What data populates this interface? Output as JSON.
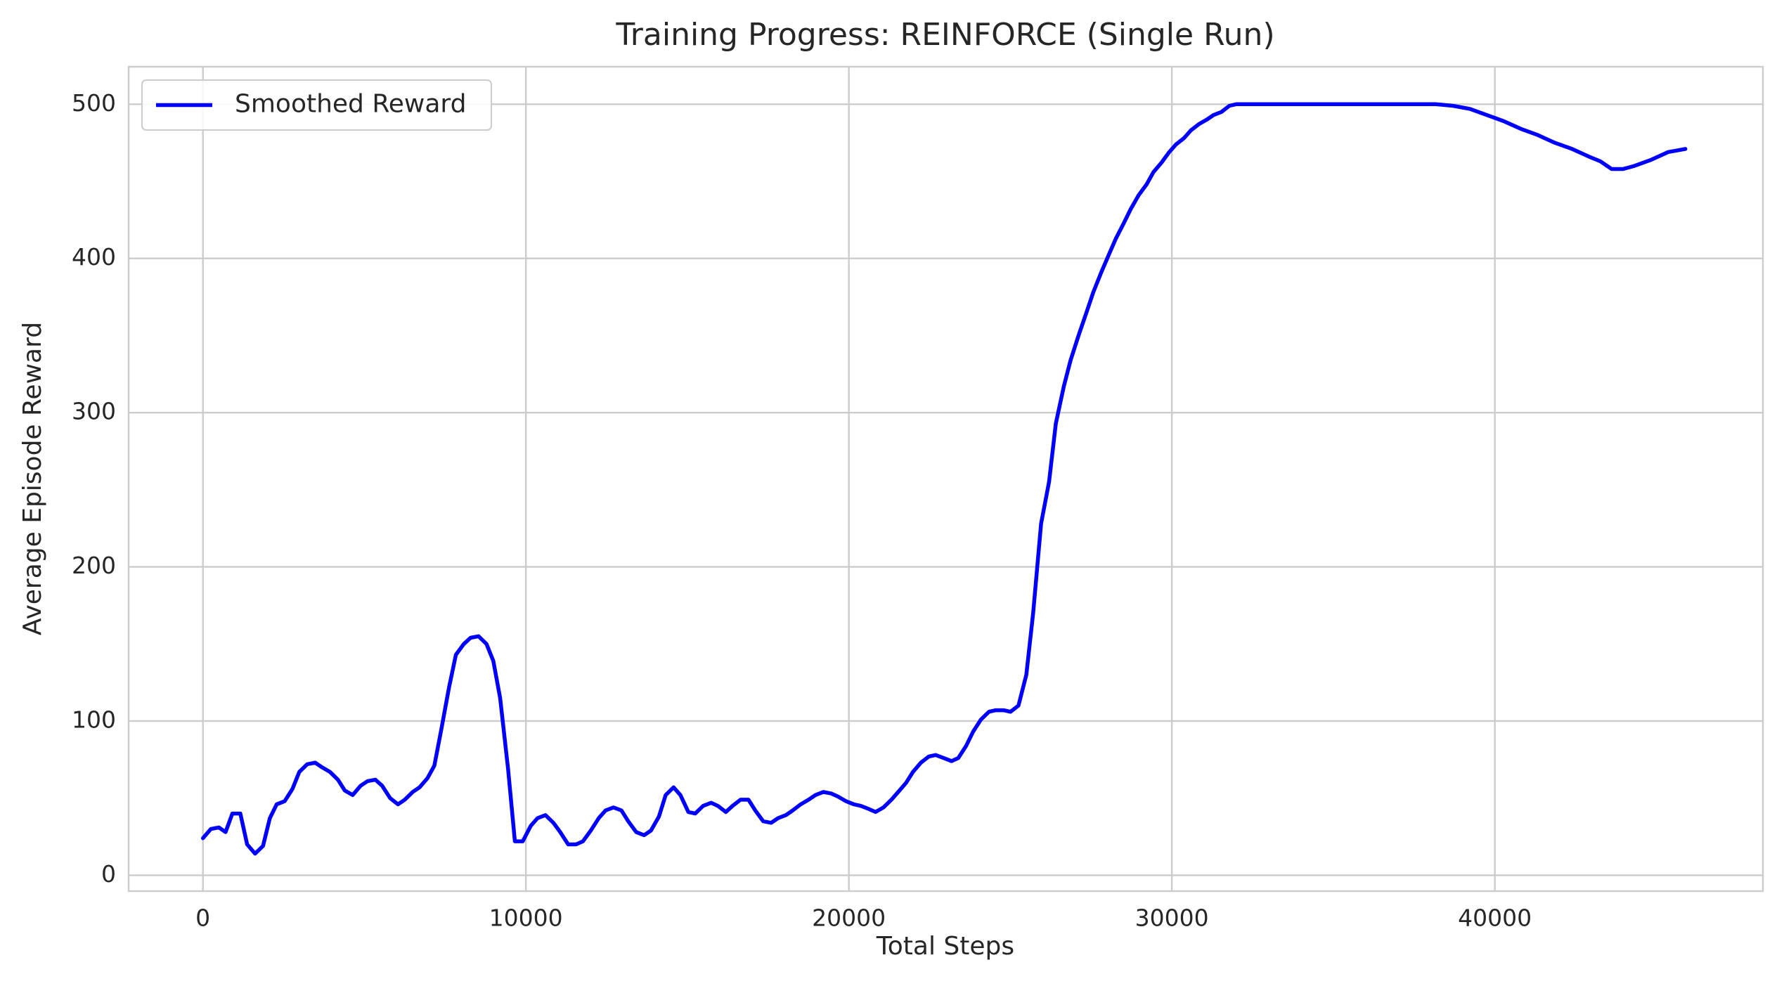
{
  "chart_data": {
    "type": "line",
    "title": "Training Progress: REINFORCE (Single Run)",
    "x_label": "Total Steps",
    "y_label": "Average Episode Reward",
    "xlim": [
      -2300,
      48300
    ],
    "ylim": [
      -10.3,
      524.3
    ],
    "xticks": [
      0,
      10000,
      20000,
      30000,
      40000
    ],
    "yticks": [
      0,
      100,
      200,
      300,
      400,
      500
    ],
    "grid": true,
    "legend_position": "upper left",
    "series": [
      {
        "name": "Smoothed Reward",
        "color": "#0000ff",
        "x": [
          0,
          246,
          492,
          702,
          913,
          1159,
          1370,
          1615,
          1861,
          2072,
          2283,
          2529,
          2774,
          2985,
          3231,
          3477,
          3687,
          3933,
          4179,
          4389,
          4635,
          4881,
          5092,
          5338,
          5549,
          5795,
          6040,
          6251,
          6497,
          6708,
          6953,
          7164,
          7375,
          7621,
          7832,
          8078,
          8288,
          8534,
          8780,
          8991,
          9201,
          9447,
          9658,
          9903,
          10149,
          10360,
          10606,
          10852,
          11062,
          11308,
          11554,
          11765,
          12010,
          12256,
          12467,
          12713,
          12959,
          13169,
          13415,
          13661,
          13872,
          14118,
          14328,
          14574,
          14785,
          15031,
          15241,
          15487,
          15733,
          15944,
          16190,
          16400,
          16646,
          16892,
          17103,
          17348,
          17594,
          17805,
          18051,
          18261,
          18507,
          18753,
          18964,
          19209,
          19455,
          19666,
          19912,
          20158,
          20368,
          20614,
          20825,
          21071,
          21317,
          21527,
          21773,
          21984,
          22230,
          22475,
          22686,
          22932,
          23178,
          23388,
          23634,
          23845,
          24091,
          24336,
          24547,
          24793,
          25004,
          25250,
          25495,
          25706,
          25952,
          26197,
          26408,
          26654,
          26865,
          27111,
          27356,
          27567,
          27813,
          28059,
          28269,
          28515,
          28726,
          28972,
          29217,
          29428,
          29674,
          29920,
          30130,
          30376,
          30587,
          30833,
          31078,
          31289,
          31535,
          31781,
          31992,
          34000,
          36000,
          38174,
          38700,
          39227,
          39754,
          40281,
          40808,
          41334,
          41861,
          42388,
          42915,
          43266,
          43617,
          43968,
          44319,
          44846,
          45373,
          45900
        ],
        "values": [
          24,
          30,
          31,
          28,
          40,
          40,
          20,
          14,
          19,
          37,
          46,
          48,
          56,
          67,
          72,
          73,
          70,
          67,
          62,
          55,
          52,
          58,
          61,
          62,
          58,
          50,
          46,
          49,
          54,
          57,
          63,
          71,
          94,
          122,
          143,
          150,
          154,
          155,
          150,
          139,
          115,
          69,
          22,
          22,
          32,
          37,
          39,
          34,
          28,
          20,
          20,
          22,
          29,
          37,
          42,
          44,
          42,
          35,
          28,
          26,
          29,
          38,
          52,
          57,
          52,
          41,
          40,
          45,
          47,
          45,
          41,
          45,
          49,
          49,
          42,
          35,
          34,
          37,
          39,
          42,
          46,
          49,
          52,
          54,
          53,
          51,
          48,
          46,
          45,
          43,
          41,
          44,
          49,
          54,
          60,
          67,
          73,
          77,
          78,
          76,
          74,
          76,
          84,
          93,
          101,
          106,
          107,
          107,
          106,
          110,
          130,
          170,
          228,
          255,
          293,
          317,
          334,
          350,
          365,
          378,
          391,
          403,
          413,
          423,
          432,
          441,
          448,
          456,
          462,
          469,
          474,
          478,
          483,
          487,
          490,
          493,
          495,
          499,
          500,
          500,
          500,
          500,
          499,
          497,
          493,
          489,
          484,
          480,
          475,
          471,
          466,
          463,
          458,
          458,
          460,
          464,
          469,
          471
        ]
      }
    ]
  }
}
